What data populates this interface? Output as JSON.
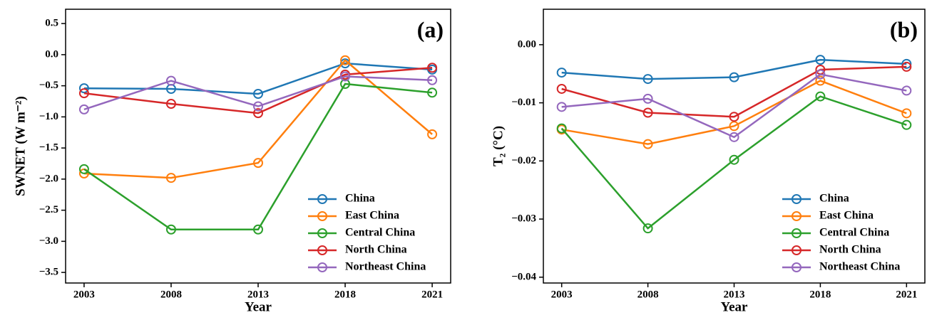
{
  "chart_data": [
    {
      "type": "line",
      "panel_label": "(a)",
      "x_label": "Year",
      "y_label": "SWNET (W m⁻²)",
      "categories": [
        "2003",
        "2008",
        "2013",
        "2018",
        "2021"
      ],
      "ylim": [
        -3.67,
        0.73
      ],
      "yticks": [
        {
          "value": 0.5,
          "label": "0.5"
        },
        {
          "value": 0,
          "label": "0.0"
        },
        {
          "value": -0.5,
          "label": "−0.5"
        },
        {
          "value": -1,
          "label": "−1.0"
        },
        {
          "value": -1.5,
          "label": "−1.5"
        },
        {
          "value": -2,
          "label": "−2.0"
        },
        {
          "value": -2.5,
          "label": "−2.5"
        },
        {
          "value": -3,
          "label": "−3.0"
        },
        {
          "value": -3.5,
          "label": "−3.5"
        }
      ],
      "legend": "lower right",
      "series": [
        {
          "name": "China",
          "color": "#1f77b4",
          "values": [
            -0.54,
            -0.55,
            -0.63,
            -0.14,
            -0.24
          ]
        },
        {
          "name": "East China",
          "color": "#ff7f0e",
          "values": [
            -1.91,
            -1.98,
            -1.74,
            -0.09,
            -1.28
          ]
        },
        {
          "name": "Central China",
          "color": "#2ca02c",
          "values": [
            -1.84,
            -2.81,
            -2.81,
            -0.47,
            -0.61
          ]
        },
        {
          "name": "North China",
          "color": "#d62728",
          "values": [
            -0.62,
            -0.79,
            -0.94,
            -0.32,
            -0.21
          ]
        },
        {
          "name": "Northeast China",
          "color": "#9467bd",
          "values": [
            -0.88,
            -0.42,
            -0.83,
            -0.35,
            -0.41
          ]
        }
      ]
    },
    {
      "type": "line",
      "panel_label": "(b)",
      "x_label": "Year",
      "y_label": "T₂ (°C)",
      "categories": [
        "2003",
        "2008",
        "2013",
        "2018",
        "2021"
      ],
      "ylim": [
        -0.041,
        0.0061
      ],
      "yticks": [
        {
          "value": 0,
          "label": "0.00"
        },
        {
          "value": -0.01,
          "label": "−0.01"
        },
        {
          "value": -0.02,
          "label": "−0.02"
        },
        {
          "value": -0.03,
          "label": "−0.03"
        },
        {
          "value": -0.04,
          "label": "−0.04"
        }
      ],
      "legend": "lower right",
      "series": [
        {
          "name": "China",
          "color": "#1f77b4",
          "values": [
            -0.0048,
            -0.0059,
            -0.0056,
            -0.0026,
            -0.0033
          ]
        },
        {
          "name": "East China",
          "color": "#ff7f0e",
          "values": [
            -0.0146,
            -0.0171,
            -0.014,
            -0.0062,
            -0.0118
          ]
        },
        {
          "name": "Central China",
          "color": "#2ca02c",
          "values": [
            -0.0144,
            -0.0316,
            -0.0198,
            -0.0089,
            -0.0138
          ]
        },
        {
          "name": "North China",
          "color": "#d62728",
          "values": [
            -0.0076,
            -0.0117,
            -0.0124,
            -0.0043,
            -0.0038
          ]
        },
        {
          "name": "Northeast China",
          "color": "#9467bd",
          "values": [
            -0.0107,
            -0.0093,
            -0.0159,
            -0.0051,
            -0.0079
          ]
        }
      ]
    }
  ]
}
